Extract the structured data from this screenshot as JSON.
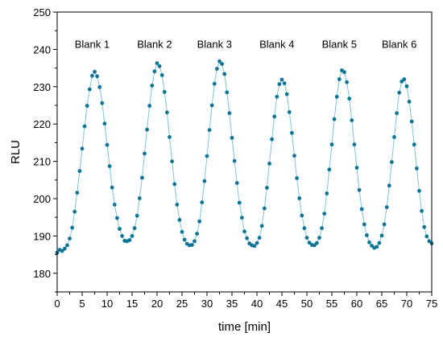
{
  "chart_data": {
    "type": "scatter",
    "xlabel": "time [min]",
    "ylabel": "RLU",
    "xlim": [
      0,
      75
    ],
    "ylim": [
      175,
      250
    ],
    "x_ticks": [
      0,
      5,
      10,
      15,
      20,
      25,
      30,
      35,
      40,
      45,
      50,
      55,
      60,
      65,
      70,
      75
    ],
    "y_ticks": [
      180,
      190,
      200,
      210,
      220,
      230,
      240,
      250
    ],
    "grid": false,
    "marker_color": "#0e7495",
    "line_color": "#7fc4d6",
    "annotations": [
      {
        "text": "Blank 1",
        "x": 7.0,
        "y": 241.5
      },
      {
        "text": "Blank 2",
        "x": 19.5,
        "y": 241.5
      },
      {
        "text": "Blank 3",
        "x": 31.5,
        "y": 241.5
      },
      {
        "text": "Blank 4",
        "x": 44.0,
        "y": 241.5
      },
      {
        "text": "Blank 5",
        "x": 56.5,
        "y": 241.5
      },
      {
        "text": "Blank 6",
        "x": 68.5,
        "y": 241.5
      }
    ],
    "series": [
      {
        "x": [
          0,
          0.5,
          1,
          1.5,
          2,
          2.5,
          3,
          3.5,
          4,
          4.5,
          5,
          5.5,
          6,
          6.5,
          7,
          7.5,
          8,
          8.5,
          9,
          9.5,
          10,
          10.5,
          11,
          11.5,
          12,
          12.5,
          13,
          13.5,
          14,
          14.5,
          15,
          15.5,
          16,
          16.5,
          17,
          17.5,
          18,
          18.5,
          19,
          19.5,
          20,
          20.5,
          21,
          21.5,
          22,
          22.5,
          23,
          23.5,
          24,
          24.5,
          25,
          25.5,
          26,
          26.5,
          27,
          27.5,
          28,
          28.5,
          29,
          29.5,
          30,
          30.5,
          31,
          31.5,
          32,
          32.5,
          33,
          33.5,
          34,
          34.5,
          35,
          35.5,
          36,
          36.5,
          37,
          37.5,
          38,
          38.5,
          39,
          39.5,
          40,
          40.5,
          41,
          41.5,
          42,
          42.5,
          43,
          43.5,
          44,
          44.5,
          45,
          45.5,
          46,
          46.5,
          47,
          47.5,
          48,
          48.5,
          49,
          49.5,
          50,
          50.5,
          51,
          51.5,
          52,
          52.5,
          53,
          53.5,
          54,
          54.5,
          55,
          55.5,
          56,
          56.5,
          57,
          57.5,
          58,
          58.5,
          59,
          59.5,
          60,
          60.5,
          61,
          61.5,
          62,
          62.5,
          63,
          63.5,
          64,
          64.5,
          65,
          65.5,
          66,
          66.5,
          67,
          67.5,
          68,
          68.5,
          69,
          69.5,
          70,
          70.5,
          71,
          71.5,
          72,
          72.5,
          73,
          73.5,
          74,
          74.5,
          75
        ],
        "y": [
          185.5,
          186.3,
          186,
          186.6,
          187.5,
          189.3,
          192.2,
          196.5,
          201.6,
          207.4,
          213.4,
          219.4,
          224.9,
          229.3,
          232.9,
          234,
          232.8,
          229.9,
          225.6,
          220.1,
          214.4,
          208.7,
          203,
          198.4,
          194.8,
          191.9,
          190,
          188.7,
          188.6,
          188.9,
          190,
          192.1,
          195.4,
          200.1,
          205.6,
          212.1,
          218.5,
          224.9,
          230.3,
          234.1,
          236.3,
          235.5,
          233.1,
          228.6,
          223.1,
          216.5,
          210,
          203.9,
          198.4,
          194.3,
          191.1,
          189,
          187.9,
          187.5,
          187.6,
          188.6,
          190.6,
          193.9,
          199,
          204.7,
          211.4,
          218.4,
          225,
          230.8,
          234.8,
          236.8,
          236.1,
          233.4,
          228.5,
          222.9,
          216.3,
          210.1,
          204.2,
          198.9,
          194.9,
          191.2,
          189.4,
          188,
          187.5,
          187.3,
          188.1,
          189.5,
          192.7,
          197.4,
          202.9,
          209.4,
          215.9,
          222,
          227.3,
          230.7,
          231.9,
          230.9,
          228,
          223.2,
          217.6,
          211.5,
          205.5,
          200.1,
          195.5,
          192.1,
          189.5,
          188.2,
          187.6,
          187.5,
          188.1,
          189.5,
          192.1,
          196,
          201.4,
          207.8,
          214.5,
          221.3,
          227.3,
          232,
          234.4,
          233.9,
          231.2,
          226.8,
          221,
          214.5,
          208.3,
          202.3,
          197.2,
          193.1,
          190.2,
          188.3,
          187.4,
          186.8,
          187.1,
          188.1,
          190.1,
          193.1,
          197.7,
          203.5,
          209.8,
          216.5,
          222.9,
          228.4,
          231.4,
          232,
          230.1,
          226,
          220.7,
          214.5,
          208.1,
          202.1,
          196.7,
          192.4,
          189.9,
          188.6,
          188
        ]
      }
    ]
  }
}
